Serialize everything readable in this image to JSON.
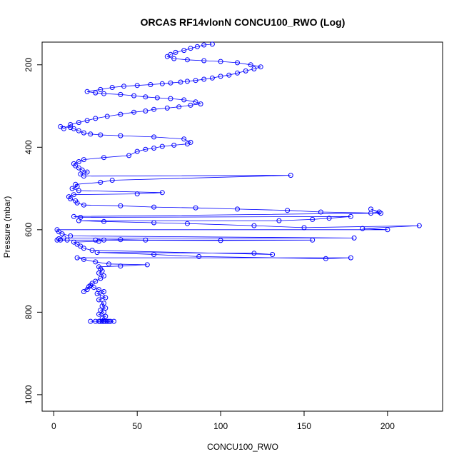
{
  "chart_data": {
    "type": "line",
    "title": "ORCAS RF14vlonN CONCU100_RWO (Log)",
    "xlabel": "CONCU100_RWO",
    "ylabel": "Pressure (mbar)",
    "xlim": [
      -7,
      233
    ],
    "ylim": [
      1040,
      145
    ],
    "y_reversed": true,
    "grid": false,
    "marker": "open-circle",
    "line_color": "#0000ff",
    "xticks": [
      0,
      50,
      100,
      150,
      200
    ],
    "yticks": [
      200,
      400,
      600,
      800,
      1000
    ],
    "series": [
      {
        "points": [
          [
            29,
            822
          ],
          [
            30,
            822
          ],
          [
            34,
            822
          ],
          [
            25,
            822
          ],
          [
            31,
            822
          ],
          [
            33,
            822
          ],
          [
            27,
            822
          ],
          [
            36,
            822
          ],
          [
            22,
            822
          ],
          [
            30,
            822
          ],
          [
            28,
            822
          ],
          [
            32,
            822
          ],
          [
            29,
            815
          ],
          [
            31,
            810
          ],
          [
            27,
            805
          ],
          [
            30,
            800
          ],
          [
            28,
            795
          ],
          [
            31,
            790
          ],
          [
            29,
            785
          ],
          [
            30,
            778
          ],
          [
            27,
            770
          ],
          [
            31,
            765
          ],
          [
            29,
            760
          ],
          [
            26,
            755
          ],
          [
            30,
            750
          ],
          [
            27,
            745
          ],
          [
            24,
            740
          ],
          [
            22,
            735
          ],
          [
            20,
            745
          ],
          [
            18,
            750
          ],
          [
            21,
            738
          ],
          [
            23,
            730
          ],
          [
            25,
            725
          ],
          [
            28,
            718
          ],
          [
            30,
            712
          ],
          [
            27,
            705
          ],
          [
            29,
            700
          ],
          [
            28,
            695
          ],
          [
            27,
            690
          ],
          [
            40,
            688
          ],
          [
            56,
            685
          ],
          [
            33,
            683
          ],
          [
            25,
            678
          ],
          [
            18,
            672
          ],
          [
            14,
            668
          ],
          [
            178,
            668
          ],
          [
            163,
            670
          ],
          [
            87,
            665
          ],
          [
            60,
            660
          ],
          [
            26,
            655
          ],
          [
            120,
            657
          ],
          [
            131,
            660
          ],
          [
            23,
            650
          ],
          [
            18,
            645
          ],
          [
            16,
            640
          ],
          [
            14,
            635
          ],
          [
            12,
            630
          ],
          [
            27,
            628
          ],
          [
            30,
            625
          ],
          [
            55,
            625
          ],
          [
            40,
            624
          ],
          [
            25,
            625
          ],
          [
            100,
            626
          ],
          [
            155,
            625
          ],
          [
            8,
            625
          ],
          [
            4,
            625
          ],
          [
            2,
            625
          ],
          [
            3,
            622
          ],
          [
            6,
            620
          ],
          [
            180,
            620
          ],
          [
            10,
            615
          ],
          [
            5,
            610
          ],
          [
            3,
            605
          ],
          [
            2,
            600
          ],
          [
            200,
            600
          ],
          [
            185,
            597
          ],
          [
            219,
            590
          ],
          [
            150,
            595
          ],
          [
            120,
            590
          ],
          [
            80,
            585
          ],
          [
            60,
            583
          ],
          [
            30,
            580
          ],
          [
            15,
            578
          ],
          [
            135,
            578
          ],
          [
            155,
            575
          ],
          [
            165,
            572
          ],
          [
            178,
            568
          ],
          [
            16,
            570
          ],
          [
            12,
            568
          ],
          [
            190,
            560
          ],
          [
            195,
            557
          ],
          [
            190,
            550
          ],
          [
            196,
            560
          ],
          [
            160,
            557
          ],
          [
            140,
            553
          ],
          [
            110,
            550
          ],
          [
            85,
            547
          ],
          [
            60,
            545
          ],
          [
            40,
            542
          ],
          [
            18,
            540
          ],
          [
            14,
            535
          ],
          [
            13,
            530
          ],
          [
            10,
            525
          ],
          [
            9,
            520
          ],
          [
            12,
            515
          ],
          [
            50,
            513
          ],
          [
            65,
            510
          ],
          [
            15,
            505
          ],
          [
            11,
            500
          ],
          [
            14,
            495
          ],
          [
            13,
            490
          ],
          [
            28,
            485
          ],
          [
            35,
            480
          ],
          [
            142,
            468
          ],
          [
            18,
            470
          ],
          [
            16,
            465
          ],
          [
            20,
            460
          ],
          [
            17,
            455
          ],
          [
            15,
            450
          ],
          [
            13,
            445
          ],
          [
            12,
            440
          ],
          [
            15,
            435
          ],
          [
            18,
            430
          ],
          [
            30,
            425
          ],
          [
            45,
            420
          ],
          [
            50,
            410
          ],
          [
            55,
            405
          ],
          [
            60,
            402
          ],
          [
            65,
            398
          ],
          [
            72,
            395
          ],
          [
            80,
            392
          ],
          [
            82,
            388
          ],
          [
            78,
            380
          ],
          [
            60,
            375
          ],
          [
            40,
            372
          ],
          [
            28,
            370
          ],
          [
            22,
            368
          ],
          [
            18,
            365
          ],
          [
            15,
            360
          ],
          [
            12,
            355
          ],
          [
            10,
            352
          ],
          [
            4,
            350
          ],
          [
            6,
            355
          ],
          [
            10,
            345
          ],
          [
            15,
            340
          ],
          [
            20,
            335
          ],
          [
            25,
            330
          ],
          [
            32,
            325
          ],
          [
            40,
            320
          ],
          [
            48,
            315
          ],
          [
            55,
            312
          ],
          [
            60,
            308
          ],
          [
            68,
            305
          ],
          [
            75,
            302
          ],
          [
            82,
            298
          ],
          [
            88,
            295
          ],
          [
            85,
            290
          ],
          [
            78,
            285
          ],
          [
            70,
            282
          ],
          [
            62,
            280
          ],
          [
            55,
            278
          ],
          [
            48,
            275
          ],
          [
            40,
            272
          ],
          [
            30,
            270
          ],
          [
            25,
            268
          ],
          [
            20,
            265
          ],
          [
            28,
            260
          ],
          [
            35,
            255
          ],
          [
            42,
            252
          ],
          [
            50,
            250
          ],
          [
            58,
            248
          ],
          [
            65,
            246
          ],
          [
            70,
            244
          ],
          [
            76,
            242
          ],
          [
            80,
            240
          ],
          [
            85,
            238
          ],
          [
            90,
            235
          ],
          [
            95,
            232
          ],
          [
            100,
            228
          ],
          [
            105,
            225
          ],
          [
            110,
            220
          ],
          [
            115,
            215
          ],
          [
            120,
            210
          ],
          [
            124,
            205
          ],
          [
            118,
            200
          ],
          [
            110,
            195
          ],
          [
            100,
            192
          ],
          [
            90,
            190
          ],
          [
            80,
            188
          ],
          [
            72,
            185
          ],
          [
            68,
            180
          ],
          [
            70,
            175
          ],
          [
            73,
            170
          ],
          [
            78,
            165
          ],
          [
            82,
            160
          ],
          [
            86,
            156
          ],
          [
            90,
            152
          ],
          [
            95,
            150
          ]
        ]
      }
    ]
  }
}
